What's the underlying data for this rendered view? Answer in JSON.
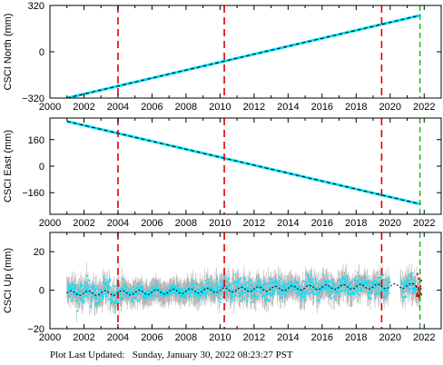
{
  "footer": {
    "label": "Plot Last Updated:",
    "timestamp": "Sunday, January 30, 2022 08:23:27 PST"
  },
  "colors": {
    "data": "#00e5ff",
    "error_bars": "#b4b4b4",
    "model": "#000000",
    "event_line": "#e00000",
    "last_line": "#00c000",
    "recent_points": "#d00000"
  },
  "chart_data": [
    {
      "type": "scatter",
      "ylabel": "CSCI North (mm)",
      "xlim": [
        2000,
        2023
      ],
      "ylim": [
        -320,
        320
      ],
      "xticks": [
        2000,
        2002,
        2004,
        2006,
        2008,
        2010,
        2012,
        2014,
        2016,
        2018,
        2020,
        2022
      ],
      "yticks": [
        -320,
        0,
        320
      ],
      "ytick_labels": [
        "−320",
        "0",
        "320"
      ],
      "series": [
        {
          "x": [
            2001.0,
            2004.0,
            2008.0,
            2012.0,
            2016.0,
            2020.0,
            2022.0
          ],
          "values": [
            -320,
            -237,
            -127,
            -17,
            93,
            203,
            258
          ]
        }
      ],
      "vlines_red": [
        2004.0,
        2010.25,
        2019.5
      ],
      "vline_green": 2021.75
    },
    {
      "type": "scatter",
      "ylabel": "CSCI East (mm)",
      "xlim": [
        2000,
        2023
      ],
      "ylim": [
        -290,
        290
      ],
      "xticks": [
        2000,
        2002,
        2004,
        2006,
        2008,
        2010,
        2012,
        2014,
        2016,
        2018,
        2020,
        2022
      ],
      "yticks": [
        -160,
        0,
        160
      ],
      "ytick_labels": [
        "−160",
        "0",
        "160"
      ],
      "series": [
        {
          "x": [
            2001.0,
            2004.0,
            2008.0,
            2012.0,
            2016.0,
            2020.0,
            2022.0
          ],
          "values": [
            270,
            198,
            102,
            6,
            -90,
            -186,
            -234
          ]
        }
      ],
      "vlines_red": [
        2004.0,
        2010.25,
        2019.5
      ],
      "vline_green": 2021.75
    },
    {
      "type": "scatter",
      "ylabel": "CSCI Up (mm)",
      "xlim": [
        2000,
        2023
      ],
      "ylim": [
        -20,
        30
      ],
      "xticks": [
        2000,
        2002,
        2004,
        2006,
        2008,
        2010,
        2012,
        2014,
        2016,
        2018,
        2020,
        2022
      ],
      "yticks": [
        -20,
        0,
        20
      ],
      "ytick_labels": [
        "−20",
        "0",
        "20"
      ],
      "series": [
        {
          "x": [
            2001.0,
            2004.0,
            2008.0,
            2012.0,
            2016.0,
            2020.0,
            2022.0
          ],
          "values": [
            -1.5,
            -1.5,
            -0.5,
            0.5,
            1.5,
            2.0,
            2.5
          ]
        }
      ],
      "vlines_red": [
        2004.0,
        2010.25,
        2019.5
      ],
      "vline_green": 2021.75
    }
  ]
}
